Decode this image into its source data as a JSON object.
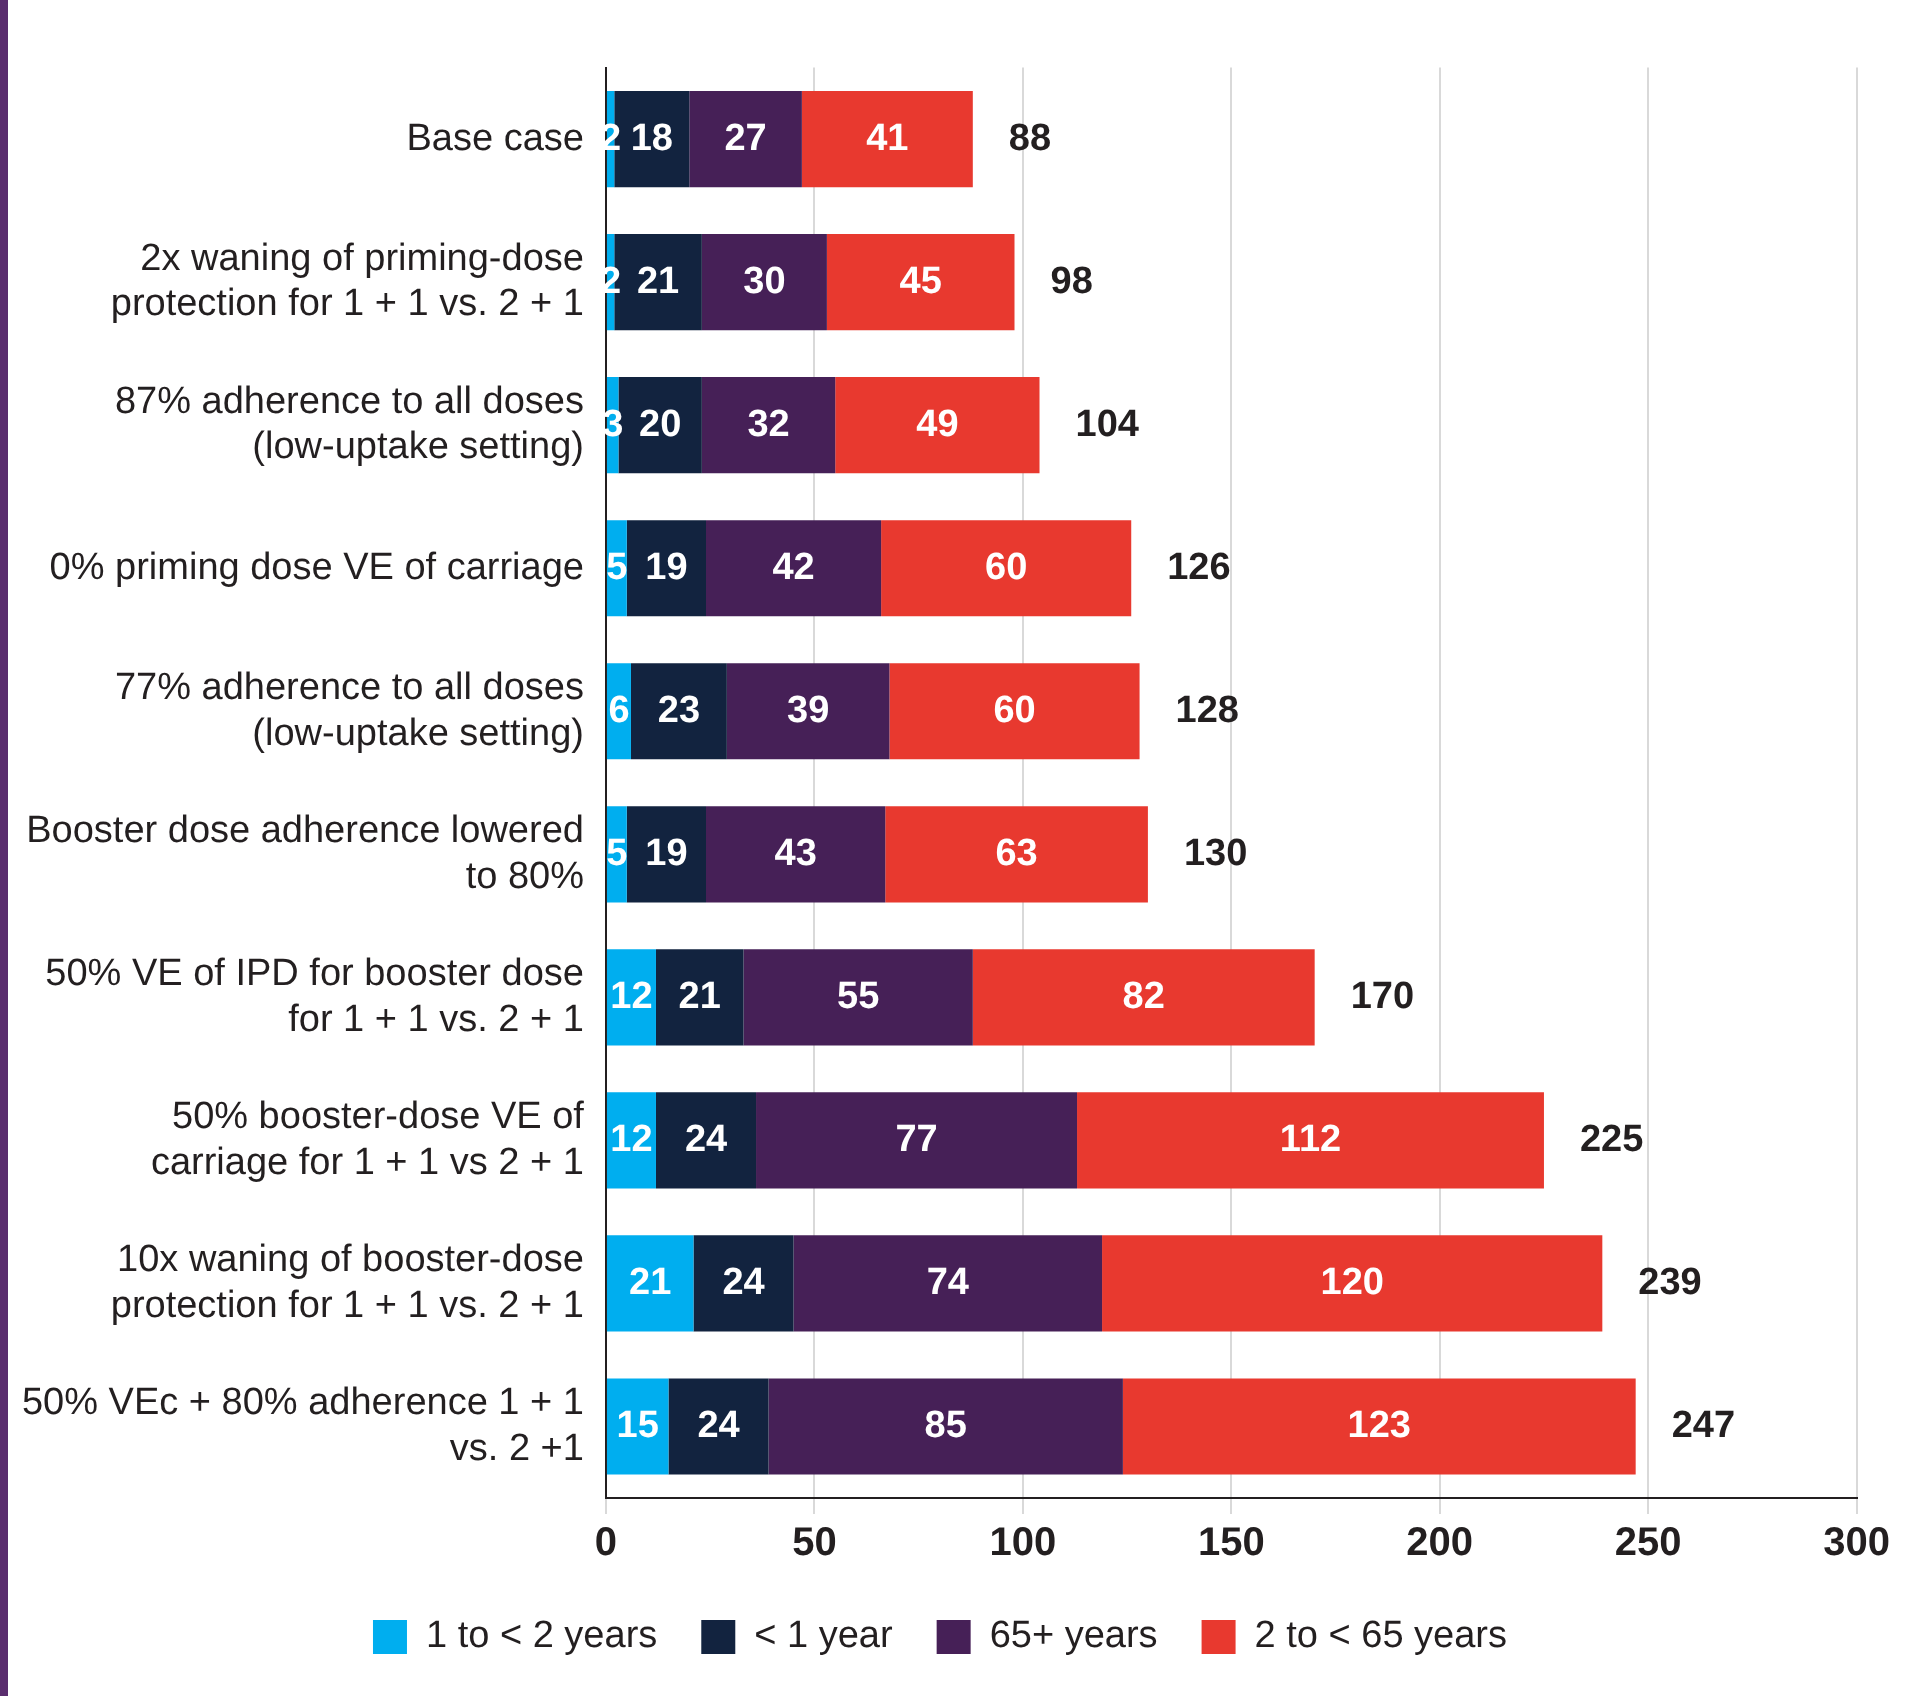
{
  "chart_data": {
    "type": "bar",
    "orientation": "horizontal",
    "stacked": true,
    "categories": [
      "Base case",
      "2x waning of priming-dose protection for 1 + 1 vs. 2 + 1",
      "87% adherence to all doses (low-uptake setting)",
      "0% priming dose VE of carriage",
      "77% adherence to all doses (low-uptake setting)",
      "Booster dose adherence lowered to 80%",
      "50% VE of IPD for booster dose for 1 + 1 vs. 2 + 1",
      "50% booster-dose VE of carriage for 1 + 1 vs 2 + 1",
      "10x waning of booster-dose protection for 1 + 1 vs. 2 + 1",
      "50% VEc + 80% adherence 1 + 1 vs. 2 +1"
    ],
    "series": [
      {
        "name": "1 to < 2 years",
        "color": "#00aeef",
        "values": [
          2,
          2,
          3,
          5,
          6,
          5,
          12,
          12,
          21,
          15
        ]
      },
      {
        "name": "< 1 year",
        "color": "#12233f",
        "values": [
          18,
          21,
          20,
          19,
          23,
          19,
          21,
          24,
          24,
          24
        ]
      },
      {
        "name": "65+ years",
        "color": "#462057",
        "values": [
          27,
          30,
          32,
          42,
          39,
          43,
          55,
          77,
          74,
          85
        ]
      },
      {
        "name": "2 to < 65 years",
        "color": "#e8392f",
        "values": [
          41,
          45,
          49,
          60,
          60,
          63,
          82,
          112,
          120,
          123
        ]
      }
    ],
    "totals": [
      "88",
      "98",
      "104",
      "126",
      "128",
      "130",
      "170",
      "225",
      "239",
      "247"
    ],
    "data_labels": true,
    "xlim": [
      0,
      300
    ],
    "xticks": [
      0,
      50,
      100,
      150,
      200,
      250,
      300
    ],
    "grid": "x",
    "legend": "bottom"
  }
}
